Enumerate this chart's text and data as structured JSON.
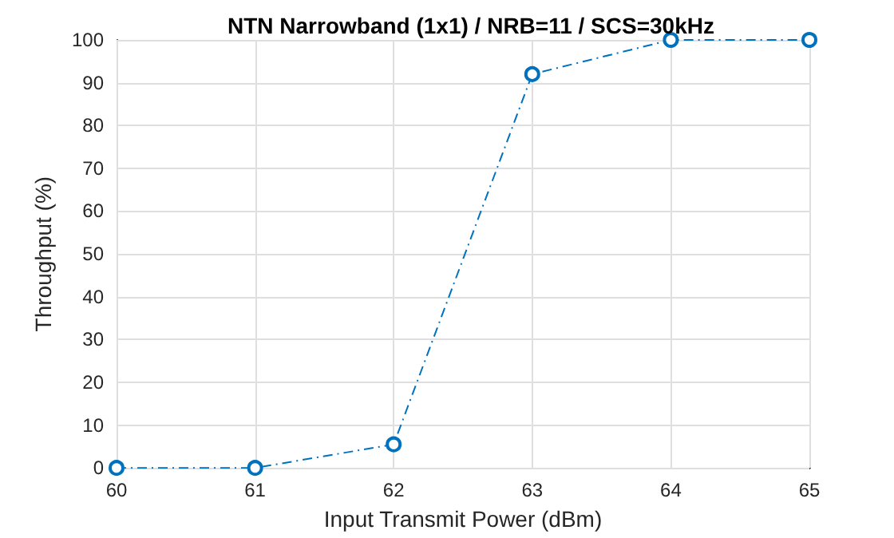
{
  "chart_data": {
    "type": "line",
    "title": "NTN Narrowband (1x1) / NRB=11 / SCS=30kHz",
    "xlabel": "Input Transmit Power (dBm)",
    "ylabel": "Throughput (%)",
    "x": [
      60,
      61,
      62,
      63,
      64,
      65
    ],
    "series": [
      {
        "color": "#0072bd",
        "values": [
          0,
          0,
          5.5,
          92,
          100,
          100
        ]
      }
    ],
    "xlim": [
      60,
      65
    ],
    "xticks": [
      60,
      61,
      62,
      63,
      64,
      65
    ],
    "ylim": [
      0,
      100
    ],
    "yticks": [
      0,
      10,
      20,
      30,
      40,
      50,
      60,
      70,
      80,
      90,
      100
    ],
    "grid": true,
    "marker": "circle",
    "line_style": "dashed"
  }
}
